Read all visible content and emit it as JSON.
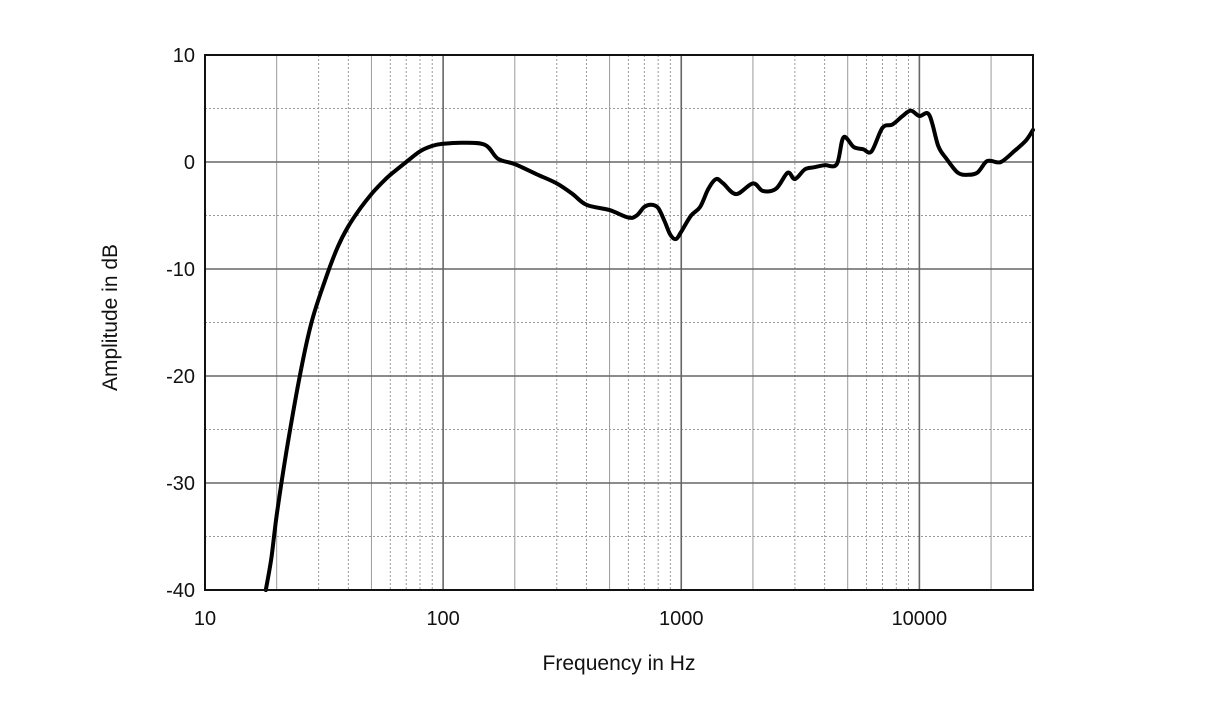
{
  "chart_data": {
    "type": "line",
    "title": "",
    "xlabel": "Frequency  in Hz",
    "ylabel": "Amplitude in dB",
    "x_scale": "log",
    "xlim": [
      10,
      30000
    ],
    "ylim": [
      -40,
      10
    ],
    "x_ticks": [
      10,
      100,
      1000,
      10000
    ],
    "x_tick_labels": [
      "10",
      "100",
      "1000",
      "10000"
    ],
    "y_ticks": [
      10,
      0,
      -10,
      -20,
      -30,
      -40
    ],
    "y_tick_labels": [
      "10",
      "0",
      "-10",
      "-20",
      "-30",
      "-40"
    ],
    "grid": true,
    "legend": "none",
    "colors": {
      "line": "#000000",
      "major_grid": "#666666",
      "minor_grid": "#9a9a9a",
      "frame": "#111111"
    },
    "series": [
      {
        "x": [
          18,
          19,
          20,
          22,
          25,
          28,
          32,
          36,
          40,
          45,
          50,
          55,
          60,
          70,
          80,
          90,
          100,
          120,
          150,
          170,
          200,
          250,
          300,
          350,
          400,
          500,
          600,
          650,
          700,
          750,
          800,
          850,
          900,
          950,
          1000,
          1100,
          1200,
          1300,
          1400,
          1500,
          1700,
          2000,
          2200,
          2500,
          2800,
          3000,
          3300,
          3600,
          4000,
          4500,
          4800,
          5300,
          5800,
          6300,
          7000,
          7700,
          8500,
          9200,
          10000,
          11000,
          12000,
          13000,
          14500,
          16000,
          17500,
          19000,
          20000,
          22000,
          25000,
          28000,
          30000
        ],
        "y": [
          -40,
          -37,
          -33,
          -27,
          -20,
          -15,
          -11,
          -8,
          -6,
          -4.3,
          -3,
          -2,
          -1.2,
          0,
          1,
          1.5,
          1.7,
          1.8,
          1.6,
          0.3,
          -0.2,
          -1.2,
          -2,
          -3,
          -4,
          -4.5,
          -5.2,
          -5,
          -4.2,
          -4,
          -4.3,
          -5.5,
          -6.8,
          -7.2,
          -6.5,
          -5,
          -4.2,
          -2.5,
          -1.6,
          -2,
          -3,
          -2,
          -2.7,
          -2.5,
          -1,
          -1.6,
          -0.7,
          -0.5,
          -0.3,
          -0.2,
          2.3,
          1.4,
          1.2,
          1,
          3.2,
          3.5,
          4.3,
          4.8,
          4.3,
          4.4,
          1.5,
          0.3,
          -1,
          -1.2,
          -1,
          0,
          0.1,
          0,
          1,
          2,
          3
        ]
      }
    ]
  }
}
